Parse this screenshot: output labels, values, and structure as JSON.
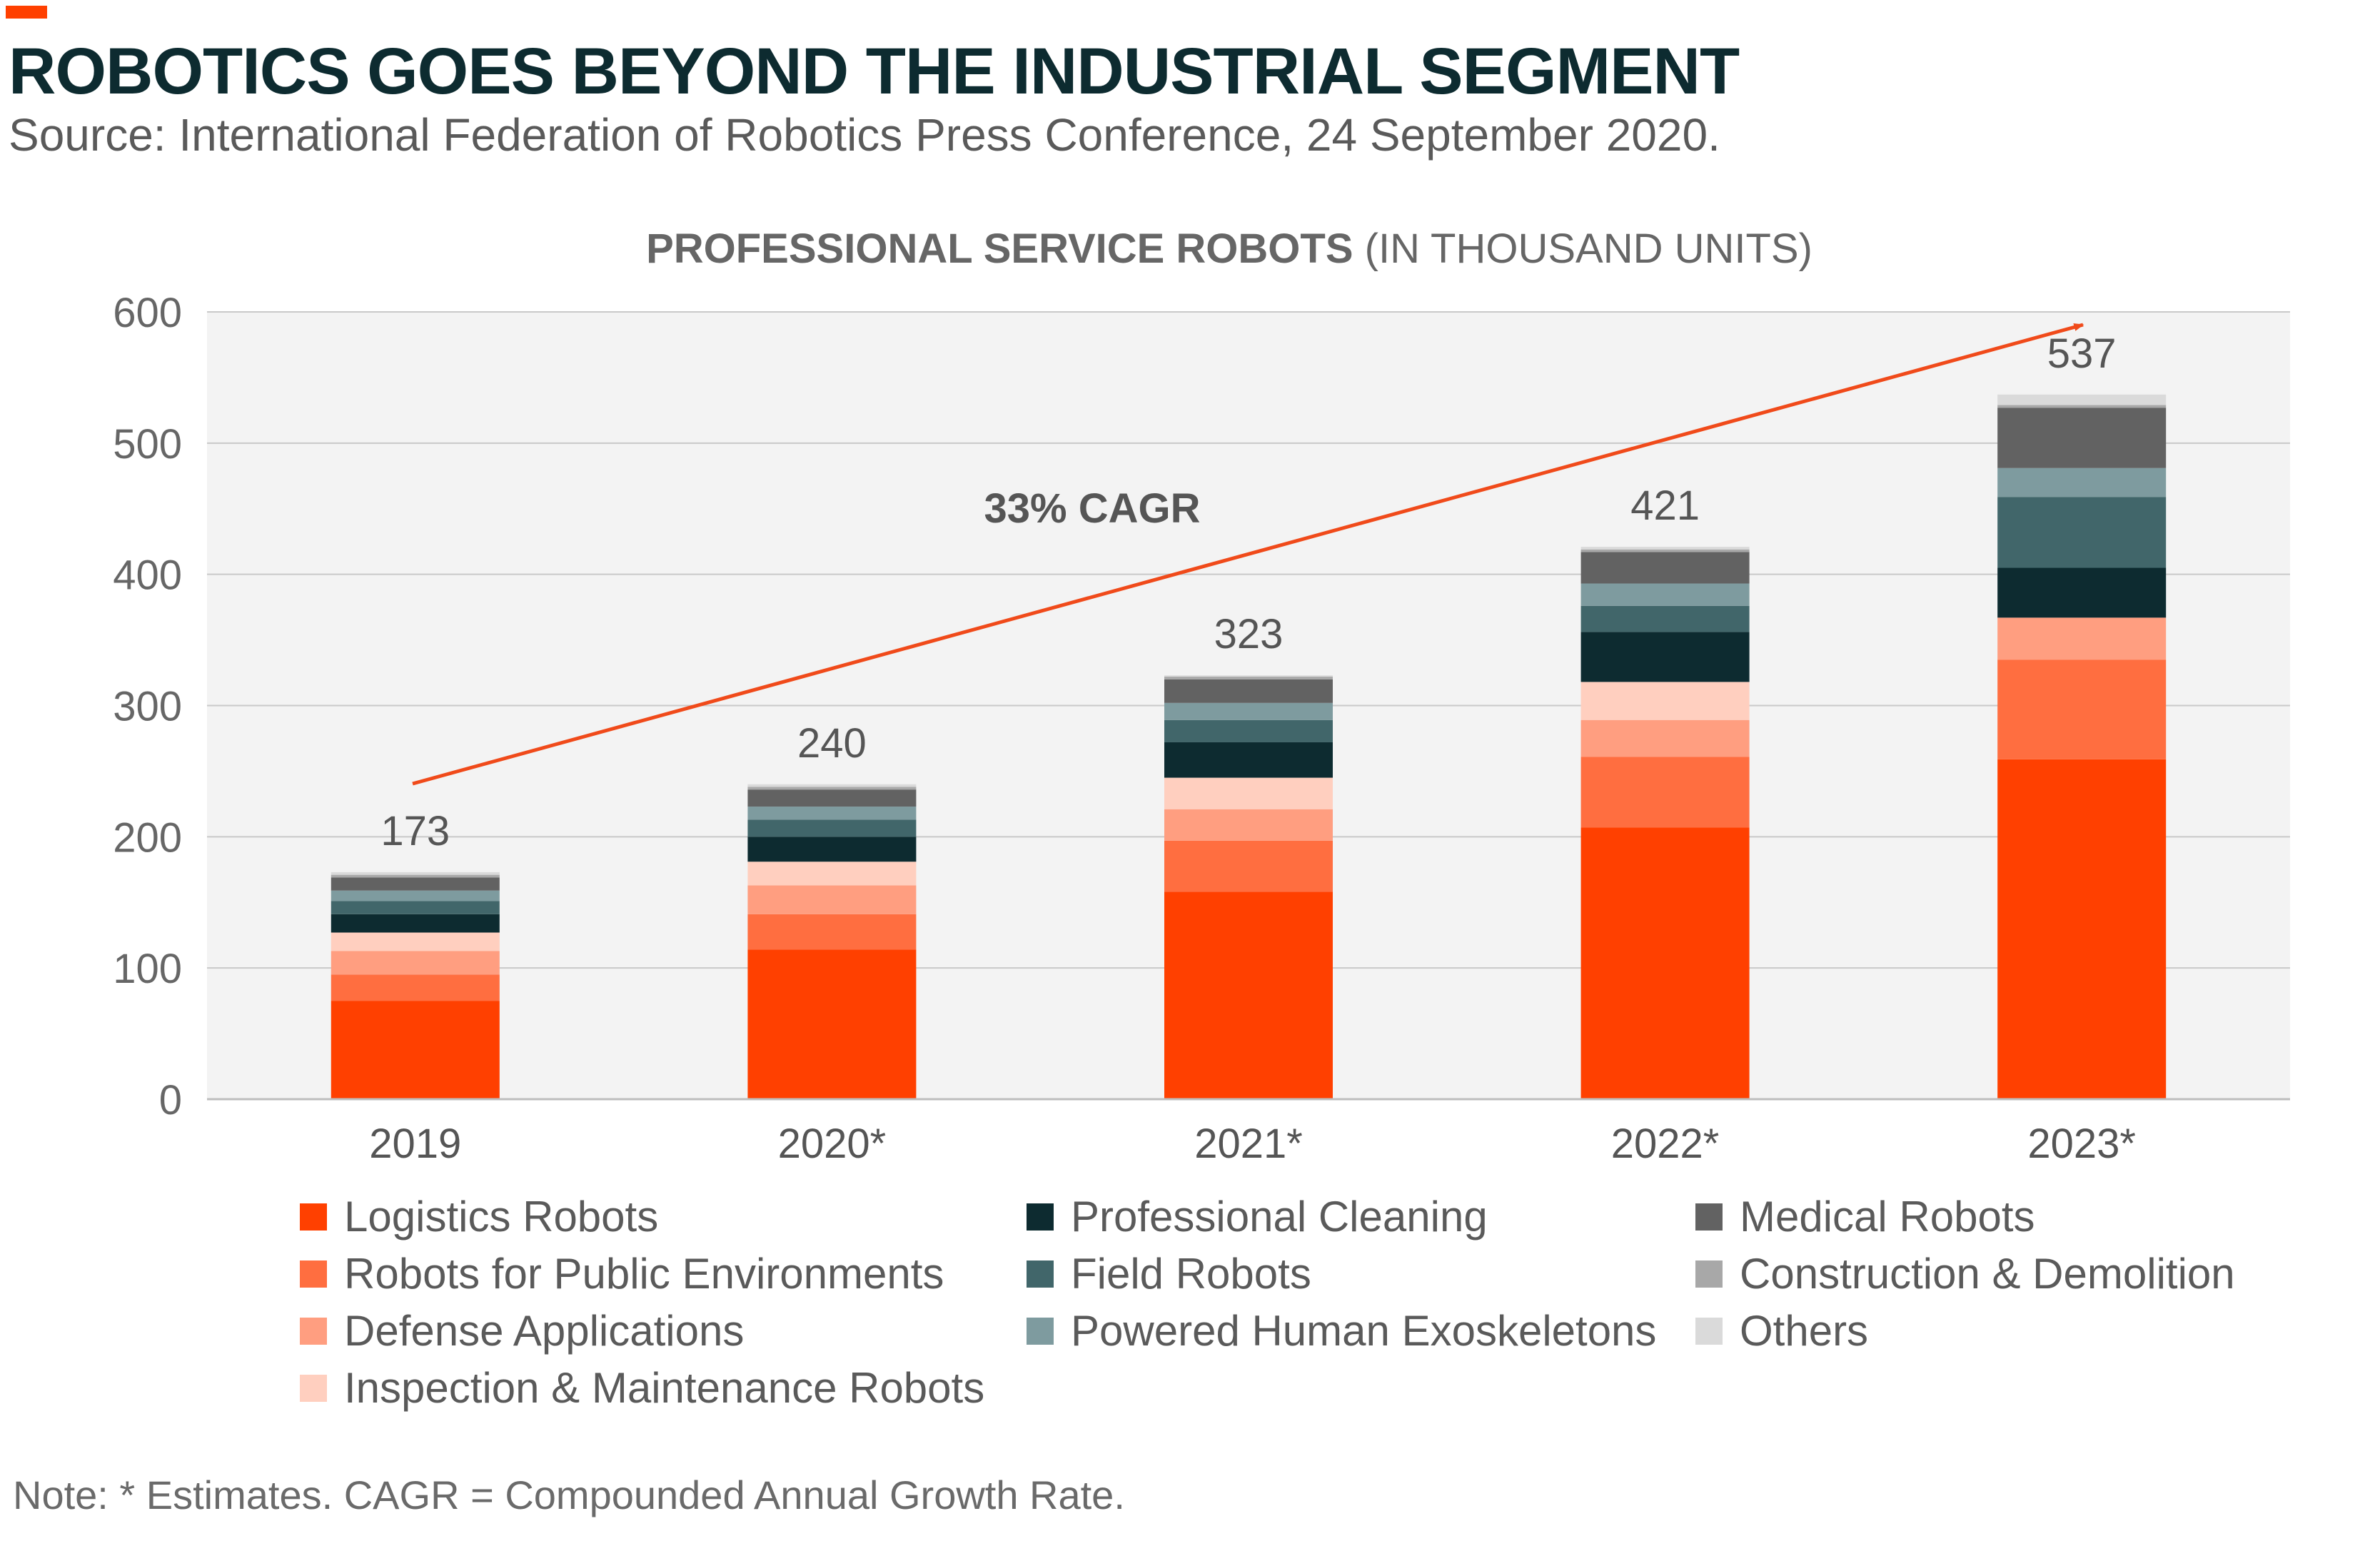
{
  "header": {
    "title": "ROBOTICS GOES BEYOND THE INDUSTRIAL SEGMENT",
    "source": "Source: International Federation of Robotics Press Conference, 24 September 2020."
  },
  "note": "Note: * Estimates. CAGR = Compounded Annual Growth Rate.",
  "chart_data": {
    "type": "bar",
    "stacked": true,
    "title_bold": "PROFESSIONAL SERVICE ROBOTS",
    "title_rest": " (IN THOUSAND UNITS)",
    "xlabel": "",
    "ylabel": "",
    "ylim": [
      0,
      600
    ],
    "yticks": [
      0,
      100,
      200,
      300,
      400,
      500,
      600
    ],
    "grid": true,
    "legend_position": "bottom",
    "categories": [
      "2019",
      "2020*",
      "2021*",
      "2022*",
      "2023*"
    ],
    "totals": [
      173,
      240,
      323,
      421,
      537
    ],
    "annotation": "33% CAGR",
    "series": [
      {
        "name": "Logistics Robots",
        "color": "#ff4000",
        "values": [
          75,
          114,
          158,
          207,
          259
        ]
      },
      {
        "name": "Robots for Public Environments",
        "color": "#ff6e40",
        "values": [
          20,
          27,
          39,
          54,
          76
        ]
      },
      {
        "name": "Defense Applications",
        "color": "#ff9e80",
        "values": [
          18,
          22,
          24,
          28,
          32
        ]
      },
      {
        "name": "Inspection & Maintenance Robots",
        "color": "#ffcfbf",
        "values": [
          14,
          18,
          24,
          29,
          0
        ]
      },
      {
        "name": "Professional Cleaning",
        "color": "#0d2b30",
        "values": [
          14,
          19,
          27,
          38,
          38
        ]
      },
      {
        "name": "Field Robots",
        "color": "#41666a",
        "values": [
          10,
          13,
          17,
          20,
          54
        ]
      },
      {
        "name": "Powered Human Exoskeletons",
        "color": "#7e9b9f",
        "values": [
          8,
          10,
          13,
          17,
          22
        ]
      },
      {
        "name": "Medical Robots",
        "color": "#626262",
        "values": [
          10,
          13,
          18,
          24,
          46
        ]
      },
      {
        "name": "Construction & Demolition",
        "color": "#a8a8a8",
        "values": [
          2,
          2,
          2,
          2,
          2
        ]
      },
      {
        "name": "Others",
        "color": "#dadada",
        "values": [
          2,
          2,
          1,
          2,
          8
        ]
      }
    ]
  }
}
